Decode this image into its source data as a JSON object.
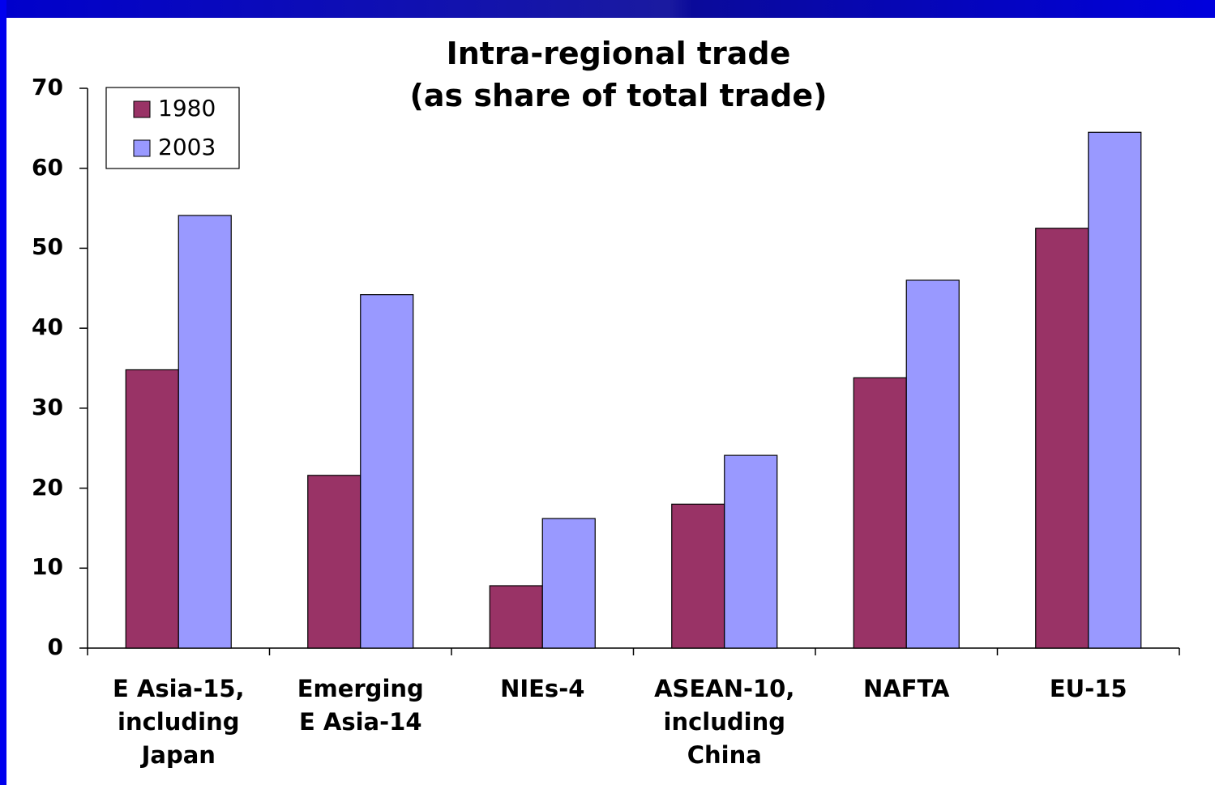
{
  "chart_data": {
    "type": "bar",
    "title": "Intra-regional trade\n(as share of total trade)",
    "categories": [
      "E Asia-15,\nincluding\nJapan",
      "Emerging\nE Asia-14",
      "NIEs-4",
      "ASEAN-10,\nincluding\nChina",
      "NAFTA",
      "EU-15"
    ],
    "series": [
      {
        "name": "1980",
        "color": "#993366",
        "values": [
          34.8,
          21.6,
          7.8,
          18.0,
          33.8,
          52.5
        ]
      },
      {
        "name": "2003",
        "color": "#9999ff",
        "values": [
          54.1,
          44.2,
          16.2,
          24.1,
          46.0,
          64.5
        ]
      }
    ],
    "ylim": [
      0,
      70
    ],
    "yticks": [
      0,
      10,
      20,
      30,
      40,
      50,
      60,
      70
    ],
    "grid": false,
    "legend": "upper left"
  }
}
